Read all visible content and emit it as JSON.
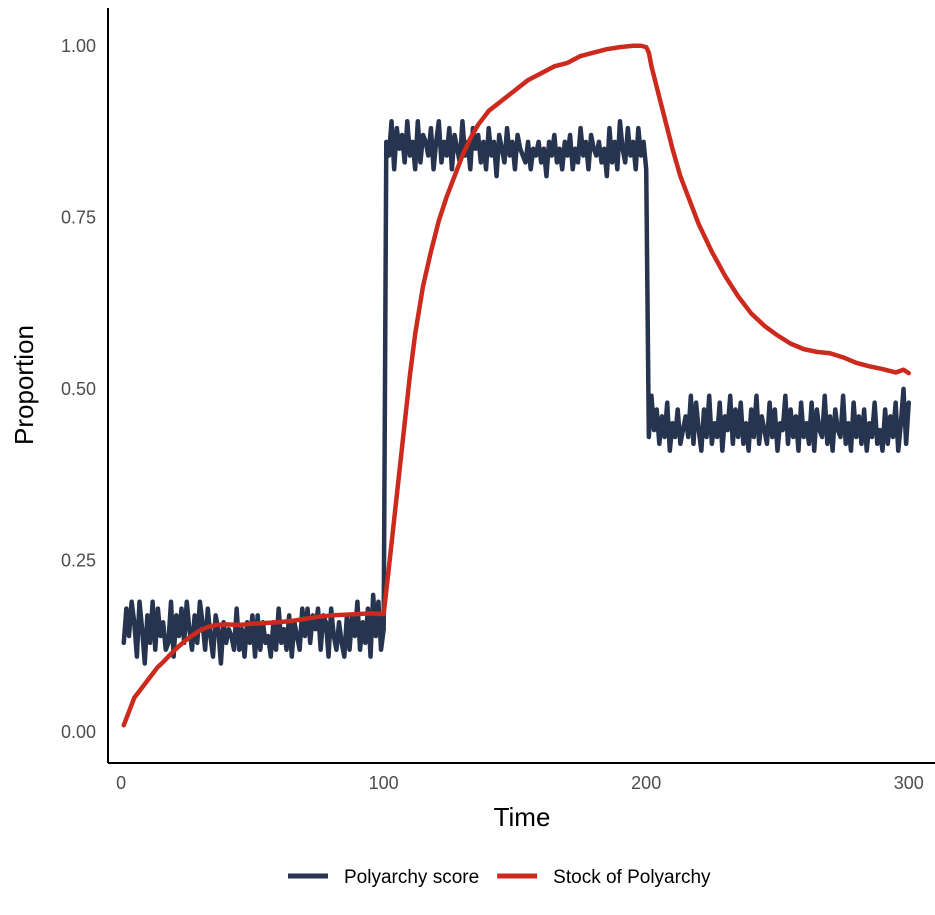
{
  "chart_data": {
    "type": "line",
    "xlabel": "Time",
    "ylabel": "Proportion",
    "xlim": [
      -5,
      310
    ],
    "ylim": [
      -0.045,
      1.055
    ],
    "x_ticks": [
      0,
      100,
      200,
      300
    ],
    "x_tick_labels": [
      "0",
      "100",
      "200",
      "300"
    ],
    "y_ticks": [
      0,
      0.25,
      0.5,
      0.75,
      1.0
    ],
    "y_tick_labels": [
      "0.00",
      "0.25",
      "0.50",
      "0.75",
      "1.00"
    ],
    "grid": false,
    "legend_position": "bottom",
    "series": [
      {
        "name": "Polyarchy score",
        "color": "#27344f",
        "x": [
          1,
          2,
          3,
          4,
          5,
          6,
          7,
          8,
          9,
          10,
          11,
          12,
          13,
          14,
          15,
          16,
          17,
          18,
          19,
          20,
          21,
          22,
          23,
          24,
          25,
          26,
          27,
          28,
          29,
          30,
          31,
          32,
          33,
          34,
          35,
          36,
          37,
          38,
          39,
          40,
          41,
          42,
          43,
          44,
          45,
          46,
          47,
          48,
          49,
          50,
          51,
          52,
          53,
          54,
          55,
          56,
          57,
          58,
          59,
          60,
          61,
          62,
          63,
          64,
          65,
          66,
          67,
          68,
          69,
          70,
          71,
          72,
          73,
          74,
          75,
          76,
          77,
          78,
          79,
          80,
          81,
          82,
          83,
          84,
          85,
          86,
          87,
          88,
          89,
          90,
          91,
          92,
          93,
          94,
          95,
          96,
          97,
          98,
          99,
          100,
          101,
          102,
          103,
          104,
          105,
          106,
          107,
          108,
          109,
          110,
          111,
          112,
          113,
          114,
          115,
          116,
          117,
          118,
          119,
          120,
          121,
          122,
          123,
          124,
          125,
          126,
          127,
          128,
          129,
          130,
          131,
          132,
          133,
          134,
          135,
          136,
          137,
          138,
          139,
          140,
          141,
          142,
          143,
          144,
          145,
          146,
          147,
          148,
          149,
          150,
          151,
          152,
          153,
          154,
          155,
          156,
          157,
          158,
          159,
          160,
          161,
          162,
          163,
          164,
          165,
          166,
          167,
          168,
          169,
          170,
          171,
          172,
          173,
          174,
          175,
          176,
          177,
          178,
          179,
          180,
          181,
          182,
          183,
          184,
          185,
          186,
          187,
          188,
          189,
          190,
          191,
          192,
          193,
          194,
          195,
          196,
          197,
          198,
          199,
          200,
          201,
          202,
          203,
          204,
          205,
          206,
          207,
          208,
          209,
          210,
          211,
          212,
          213,
          214,
          215,
          216,
          217,
          218,
          219,
          220,
          221,
          222,
          223,
          224,
          225,
          226,
          227,
          228,
          229,
          230,
          231,
          232,
          233,
          234,
          235,
          236,
          237,
          238,
          239,
          240,
          241,
          242,
          243,
          244,
          245,
          246,
          247,
          248,
          249,
          250,
          251,
          252,
          253,
          254,
          255,
          256,
          257,
          258,
          259,
          260,
          261,
          262,
          263,
          264,
          265,
          266,
          267,
          268,
          269,
          270,
          271,
          272,
          273,
          274,
          275,
          276,
          277,
          278,
          279,
          280,
          281,
          282,
          283,
          284,
          285,
          286,
          287,
          288,
          289,
          290,
          291,
          292,
          293,
          294,
          295,
          296,
          297,
          298,
          299,
          300
        ],
        "y": [
          0.13,
          0.18,
          0.14,
          0.19,
          0.16,
          0.11,
          0.19,
          0.15,
          0.1,
          0.17,
          0.13,
          0.19,
          0.12,
          0.18,
          0.14,
          0.16,
          0.12,
          0.13,
          0.19,
          0.11,
          0.17,
          0.14,
          0.18,
          0.13,
          0.19,
          0.15,
          0.12,
          0.17,
          0.13,
          0.19,
          0.16,
          0.12,
          0.18,
          0.14,
          0.11,
          0.17,
          0.15,
          0.1,
          0.16,
          0.13,
          0.15,
          0.14,
          0.12,
          0.18,
          0.12,
          0.15,
          0.11,
          0.16,
          0.13,
          0.17,
          0.11,
          0.17,
          0.12,
          0.16,
          0.13,
          0.14,
          0.11,
          0.16,
          0.12,
          0.18,
          0.13,
          0.15,
          0.12,
          0.17,
          0.11,
          0.16,
          0.14,
          0.12,
          0.18,
          0.14,
          0.18,
          0.13,
          0.17,
          0.15,
          0.18,
          0.12,
          0.17,
          0.16,
          0.11,
          0.18,
          0.14,
          0.12,
          0.16,
          0.13,
          0.11,
          0.17,
          0.12,
          0.17,
          0.14,
          0.19,
          0.12,
          0.16,
          0.13,
          0.18,
          0.11,
          0.2,
          0.14,
          0.19,
          0.12,
          0.15,
          0.86,
          0.84,
          0.89,
          0.82,
          0.88,
          0.85,
          0.87,
          0.83,
          0.89,
          0.84,
          0.86,
          0.82,
          0.89,
          0.83,
          0.87,
          0.86,
          0.84,
          0.88,
          0.82,
          0.86,
          0.89,
          0.83,
          0.86,
          0.84,
          0.88,
          0.82,
          0.87,
          0.85,
          0.83,
          0.89,
          0.84,
          0.86,
          0.82,
          0.88,
          0.85,
          0.87,
          0.83,
          0.86,
          0.82,
          0.88,
          0.84,
          0.86,
          0.81,
          0.87,
          0.85,
          0.83,
          0.88,
          0.84,
          0.86,
          0.82,
          0.87,
          0.85,
          0.84,
          0.83,
          0.86,
          0.82,
          0.85,
          0.84,
          0.86,
          0.83,
          0.85,
          0.81,
          0.86,
          0.84,
          0.87,
          0.83,
          0.85,
          0.82,
          0.86,
          0.84,
          0.87,
          0.82,
          0.85,
          0.83,
          0.88,
          0.84,
          0.86,
          0.82,
          0.87,
          0.85,
          0.84,
          0.86,
          0.83,
          0.85,
          0.81,
          0.88,
          0.83,
          0.86,
          0.82,
          0.89,
          0.85,
          0.83,
          0.88,
          0.84,
          0.86,
          0.82,
          0.88,
          0.84,
          0.86,
          0.82,
          0.43,
          0.49,
          0.44,
          0.47,
          0.42,
          0.46,
          0.43,
          0.48,
          0.41,
          0.45,
          0.43,
          0.47,
          0.42,
          0.44,
          0.46,
          0.43,
          0.49,
          0.42,
          0.48,
          0.44,
          0.41,
          0.47,
          0.43,
          0.49,
          0.42,
          0.45,
          0.43,
          0.48,
          0.41,
          0.46,
          0.44,
          0.49,
          0.42,
          0.47,
          0.43,
          0.48,
          0.42,
          0.45,
          0.41,
          0.47,
          0.43,
          0.49,
          0.42,
          0.46,
          0.44,
          0.42,
          0.48,
          0.43,
          0.47,
          0.41,
          0.45,
          0.44,
          0.49,
          0.42,
          0.47,
          0.43,
          0.46,
          0.41,
          0.48,
          0.43,
          0.45,
          0.42,
          0.48,
          0.41,
          0.47,
          0.44,
          0.43,
          0.49,
          0.42,
          0.46,
          0.41,
          0.47,
          0.44,
          0.43,
          0.49,
          0.42,
          0.45,
          0.41,
          0.48,
          0.43,
          0.46,
          0.42,
          0.47,
          0.41,
          0.45,
          0.43,
          0.48,
          0.42,
          0.44,
          0.41,
          0.47,
          0.42,
          0.46,
          0.43,
          0.48,
          0.41,
          0.45,
          0.5,
          0.42,
          0.48
        ]
      },
      {
        "name": "Stock of Polyarchy",
        "color": "#cd2a1e",
        "x": [
          1,
          2,
          3,
          4,
          5,
          6,
          8,
          10,
          12,
          14,
          16,
          18,
          20,
          22,
          24,
          26,
          28,
          30,
          33,
          36,
          40,
          45,
          50,
          55,
          60,
          65,
          70,
          75,
          80,
          85,
          90,
          95,
          100,
          102,
          104,
          106,
          108,
          110,
          112,
          115,
          118,
          121,
          124,
          127,
          130,
          133,
          136,
          140,
          145,
          150,
          155,
          160,
          165,
          170,
          175,
          180,
          185,
          190,
          195,
          198,
          200,
          201,
          202,
          204,
          206,
          208,
          210,
          213,
          216,
          220,
          225,
          230,
          235,
          240,
          245,
          250,
          255,
          260,
          265,
          270,
          275,
          280,
          285,
          290,
          295,
          298,
          300
        ],
        "y": [
          0.01,
          0.02,
          0.03,
          0.04,
          0.05,
          0.055,
          0.065,
          0.075,
          0.085,
          0.095,
          0.102,
          0.11,
          0.118,
          0.125,
          0.132,
          0.138,
          0.143,
          0.148,
          0.153,
          0.156,
          0.157,
          0.156,
          0.158,
          0.159,
          0.16,
          0.162,
          0.165,
          0.168,
          0.17,
          0.171,
          0.172,
          0.173,
          0.172,
          0.24,
          0.31,
          0.38,
          0.45,
          0.52,
          0.58,
          0.65,
          0.7,
          0.745,
          0.78,
          0.81,
          0.84,
          0.865,
          0.885,
          0.905,
          0.92,
          0.935,
          0.95,
          0.96,
          0.97,
          0.975,
          0.985,
          0.99,
          0.995,
          0.998,
          1.0,
          1.0,
          0.998,
          0.99,
          0.97,
          0.94,
          0.91,
          0.88,
          0.85,
          0.81,
          0.78,
          0.74,
          0.7,
          0.665,
          0.635,
          0.61,
          0.592,
          0.578,
          0.566,
          0.558,
          0.554,
          0.552,
          0.546,
          0.538,
          0.533,
          0.529,
          0.524,
          0.528,
          0.523
        ]
      }
    ]
  }
}
